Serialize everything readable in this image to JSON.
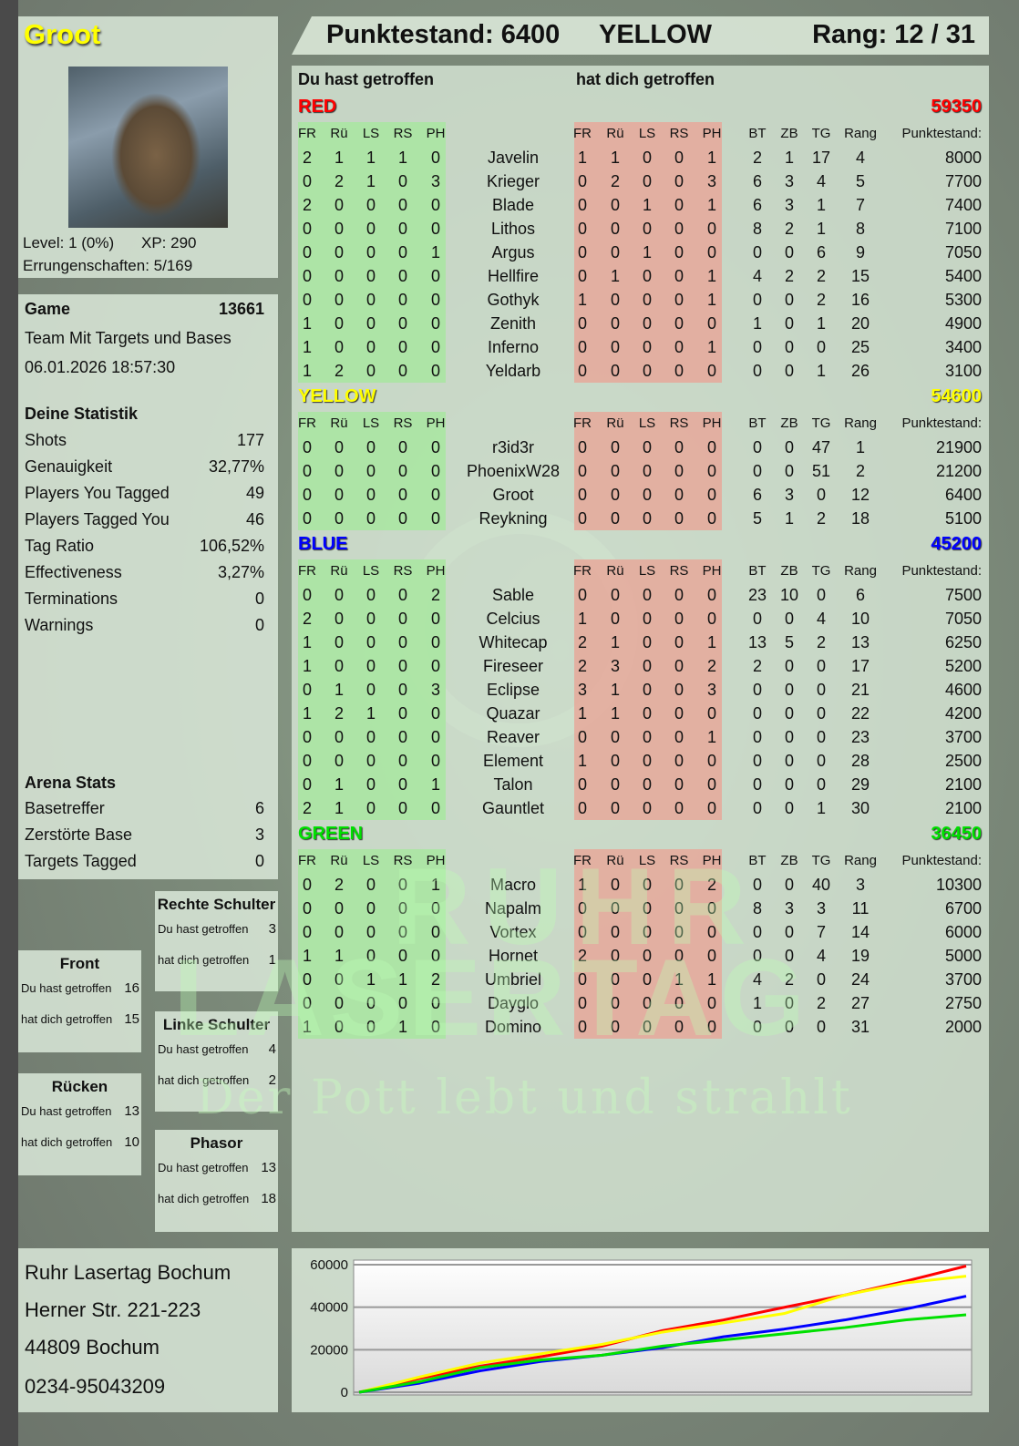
{
  "watermark": {
    "logo_line1": "RUHR",
    "logo_line2": "LASERTAG",
    "slogan": "Der Pott lebt und strahlt"
  },
  "profile": {
    "name": "Groot",
    "level": "Level: 1 (0%)",
    "xp": "XP: 290",
    "achievements": "Errungenschaften: 5/169",
    "avatar_icon": "groot-avatar-image"
  },
  "header": {
    "score": "Punktestand: 6400",
    "team": "YELLOW",
    "rank": "Rang: 12 / 31"
  },
  "game": {
    "label": "Game",
    "id": "13661",
    "mode": "Team Mit Targets und Bases",
    "datetime": "06.01.2026 18:57:30",
    "stats_title": "Deine Statistik",
    "stats": [
      {
        "label": "Shots",
        "value": "177"
      },
      {
        "label": "Genauigkeit",
        "value": "32,77%"
      },
      {
        "label": "Players You Tagged",
        "value": "49"
      },
      {
        "label": "Players Tagged You",
        "value": "46"
      },
      {
        "label": "Tag Ratio",
        "value": "106,52%"
      },
      {
        "label": "Effectiveness",
        "value": "3,27%"
      },
      {
        "label": "Terminations",
        "value": "0"
      },
      {
        "label": "Warnings",
        "value": "0"
      }
    ],
    "arena_title": "Arena Stats",
    "arena": [
      {
        "label": "Basetreffer",
        "value": "6"
      },
      {
        "label": "Zerstörte Base",
        "value": "3"
      },
      {
        "label": "Targets Tagged",
        "value": "0"
      }
    ]
  },
  "zones": [
    {
      "title": "Rechte Schulter",
      "hit_label": "Du hast getroffen",
      "hit": "3",
      "got_label": "hat dich getroffen",
      "got": "1"
    },
    {
      "title": "Front",
      "hit_label": "Du hast getroffen",
      "hit": "16",
      "got_label": "hat dich getroffen",
      "got": "15"
    },
    {
      "title": "Linke Schulter",
      "hit_label": "Du hast getroffen",
      "hit": "4",
      "got_label": "hat dich getroffen",
      "got": "2"
    },
    {
      "title": "Rücken",
      "hit_label": "Du hast getroffen",
      "hit": "13",
      "got_label": "hat dich getroffen",
      "got": "10"
    },
    {
      "title": "Phasor",
      "hit_label": "Du hast getroffen",
      "hit": "13",
      "got_label": "hat dich getroffen",
      "got": "18"
    }
  ],
  "address": {
    "line1": "Ruhr Lasertag Bochum",
    "line2": "Herner Str. 221-223",
    "line3": "44809 Bochum",
    "line4": "0234-95043209"
  },
  "board": {
    "hit_label": "Du hast getroffen",
    "got_label": "hat dich getroffen",
    "zone_headers": [
      "FR",
      "Rü",
      "LS",
      "RS",
      "PH"
    ],
    "stat_headers": [
      "BT",
      "ZB",
      "TG",
      "Rang"
    ],
    "score_header": "Punktestand:",
    "hit_bg": "#a8e6a0",
    "got_bg": "#e6a89a",
    "teams": [
      {
        "name": "RED",
        "color": "#ff0000",
        "score": "59350",
        "players": [
          {
            "name": "Javelin",
            "hit": [
              "2",
              "1",
              "1",
              "1",
              "0"
            ],
            "got": [
              "1",
              "1",
              "0",
              "0",
              "1"
            ],
            "bt": "2",
            "zb": "1",
            "tg": "17",
            "rang": "4",
            "score": "8000"
          },
          {
            "name": "Krieger",
            "hit": [
              "0",
              "2",
              "1",
              "0",
              "3"
            ],
            "got": [
              "0",
              "2",
              "0",
              "0",
              "3"
            ],
            "bt": "6",
            "zb": "3",
            "tg": "4",
            "rang": "5",
            "score": "7700"
          },
          {
            "name": "Blade",
            "hit": [
              "2",
              "0",
              "0",
              "0",
              "0"
            ],
            "got": [
              "0",
              "0",
              "1",
              "0",
              "1"
            ],
            "bt": "6",
            "zb": "3",
            "tg": "1",
            "rang": "7",
            "score": "7400"
          },
          {
            "name": "Lithos",
            "hit": [
              "0",
              "0",
              "0",
              "0",
              "0"
            ],
            "got": [
              "0",
              "0",
              "0",
              "0",
              "0"
            ],
            "bt": "8",
            "zb": "2",
            "tg": "1",
            "rang": "8",
            "score": "7100"
          },
          {
            "name": "Argus",
            "hit": [
              "0",
              "0",
              "0",
              "0",
              "1"
            ],
            "got": [
              "0",
              "0",
              "1",
              "0",
              "0"
            ],
            "bt": "0",
            "zb": "0",
            "tg": "6",
            "rang": "9",
            "score": "7050"
          },
          {
            "name": "Hellfire",
            "hit": [
              "0",
              "0",
              "0",
              "0",
              "0"
            ],
            "got": [
              "0",
              "1",
              "0",
              "0",
              "1"
            ],
            "bt": "4",
            "zb": "2",
            "tg": "2",
            "rang": "15",
            "score": "5400"
          },
          {
            "name": "Gothyk",
            "hit": [
              "0",
              "0",
              "0",
              "0",
              "0"
            ],
            "got": [
              "1",
              "0",
              "0",
              "0",
              "1"
            ],
            "bt": "0",
            "zb": "0",
            "tg": "2",
            "rang": "16",
            "score": "5300"
          },
          {
            "name": "Zenith",
            "hit": [
              "1",
              "0",
              "0",
              "0",
              "0"
            ],
            "got": [
              "0",
              "0",
              "0",
              "0",
              "0"
            ],
            "bt": "1",
            "zb": "0",
            "tg": "1",
            "rang": "20",
            "score": "4900"
          },
          {
            "name": "Inferno",
            "hit": [
              "1",
              "0",
              "0",
              "0",
              "0"
            ],
            "got": [
              "0",
              "0",
              "0",
              "0",
              "1"
            ],
            "bt": "0",
            "zb": "0",
            "tg": "0",
            "rang": "25",
            "score": "3400"
          },
          {
            "name": "Yeldarb",
            "hit": [
              "1",
              "2",
              "0",
              "0",
              "0"
            ],
            "got": [
              "0",
              "0",
              "0",
              "0",
              "0"
            ],
            "bt": "0",
            "zb": "0",
            "tg": "1",
            "rang": "26",
            "score": "3100"
          }
        ]
      },
      {
        "name": "YELLOW",
        "color": "#ffff00",
        "score": "54600",
        "players": [
          {
            "name": "r3id3r",
            "hit": [
              "0",
              "0",
              "0",
              "0",
              "0"
            ],
            "got": [
              "0",
              "0",
              "0",
              "0",
              "0"
            ],
            "bt": "0",
            "zb": "0",
            "tg": "47",
            "rang": "1",
            "score": "21900"
          },
          {
            "name": "PhoenixW28",
            "hit": [
              "0",
              "0",
              "0",
              "0",
              "0"
            ],
            "got": [
              "0",
              "0",
              "0",
              "0",
              "0"
            ],
            "bt": "0",
            "zb": "0",
            "tg": "51",
            "rang": "2",
            "score": "21200"
          },
          {
            "name": "Groot",
            "hit": [
              "0",
              "0",
              "0",
              "0",
              "0"
            ],
            "got": [
              "0",
              "0",
              "0",
              "0",
              "0"
            ],
            "bt": "6",
            "zb": "3",
            "tg": "0",
            "rang": "12",
            "score": "6400"
          },
          {
            "name": "Reykning",
            "hit": [
              "0",
              "0",
              "0",
              "0",
              "0"
            ],
            "got": [
              "0",
              "0",
              "0",
              "0",
              "0"
            ],
            "bt": "5",
            "zb": "1",
            "tg": "2",
            "rang": "18",
            "score": "5100"
          }
        ]
      },
      {
        "name": "BLUE",
        "color": "#0000ff",
        "score": "45200",
        "players": [
          {
            "name": "Sable",
            "hit": [
              "0",
              "0",
              "0",
              "0",
              "2"
            ],
            "got": [
              "0",
              "0",
              "0",
              "0",
              "0"
            ],
            "bt": "23",
            "zb": "10",
            "tg": "0",
            "rang": "6",
            "score": "7500"
          },
          {
            "name": "Celcius",
            "hit": [
              "2",
              "0",
              "0",
              "0",
              "0"
            ],
            "got": [
              "1",
              "0",
              "0",
              "0",
              "0"
            ],
            "bt": "0",
            "zb": "0",
            "tg": "4",
            "rang": "10",
            "score": "7050"
          },
          {
            "name": "Whitecap",
            "hit": [
              "1",
              "0",
              "0",
              "0",
              "0"
            ],
            "got": [
              "2",
              "1",
              "0",
              "0",
              "1"
            ],
            "bt": "13",
            "zb": "5",
            "tg": "2",
            "rang": "13",
            "score": "6250"
          },
          {
            "name": "Fireseer",
            "hit": [
              "1",
              "0",
              "0",
              "0",
              "0"
            ],
            "got": [
              "2",
              "3",
              "0",
              "0",
              "2"
            ],
            "bt": "2",
            "zb": "0",
            "tg": "0",
            "rang": "17",
            "score": "5200"
          },
          {
            "name": "Eclipse",
            "hit": [
              "0",
              "1",
              "0",
              "0",
              "3"
            ],
            "got": [
              "3",
              "1",
              "0",
              "0",
              "3"
            ],
            "bt": "0",
            "zb": "0",
            "tg": "0",
            "rang": "21",
            "score": "4600"
          },
          {
            "name": "Quazar",
            "hit": [
              "1",
              "2",
              "1",
              "0",
              "0"
            ],
            "got": [
              "1",
              "1",
              "0",
              "0",
              "0"
            ],
            "bt": "0",
            "zb": "0",
            "tg": "0",
            "rang": "22",
            "score": "4200"
          },
          {
            "name": "Reaver",
            "hit": [
              "0",
              "0",
              "0",
              "0",
              "0"
            ],
            "got": [
              "0",
              "0",
              "0",
              "0",
              "1"
            ],
            "bt": "0",
            "zb": "0",
            "tg": "0",
            "rang": "23",
            "score": "3700"
          },
          {
            "name": "Element",
            "hit": [
              "0",
              "0",
              "0",
              "0",
              "0"
            ],
            "got": [
              "1",
              "0",
              "0",
              "0",
              "0"
            ],
            "bt": "0",
            "zb": "0",
            "tg": "0",
            "rang": "28",
            "score": "2500"
          },
          {
            "name": "Talon",
            "hit": [
              "0",
              "1",
              "0",
              "0",
              "1"
            ],
            "got": [
              "0",
              "0",
              "0",
              "0",
              "0"
            ],
            "bt": "0",
            "zb": "0",
            "tg": "0",
            "rang": "29",
            "score": "2100"
          },
          {
            "name": "Gauntlet",
            "hit": [
              "2",
              "1",
              "0",
              "0",
              "0"
            ],
            "got": [
              "0",
              "0",
              "0",
              "0",
              "0"
            ],
            "bt": "0",
            "zb": "0",
            "tg": "1",
            "rang": "30",
            "score": "2100"
          }
        ]
      },
      {
        "name": "GREEN",
        "color": "#00e000",
        "score": "36450",
        "players": [
          {
            "name": "Macro",
            "hit": [
              "0",
              "2",
              "0",
              "0",
              "1"
            ],
            "got": [
              "1",
              "0",
              "0",
              "0",
              "2"
            ],
            "bt": "0",
            "zb": "0",
            "tg": "40",
            "rang": "3",
            "score": "10300"
          },
          {
            "name": "Napalm",
            "hit": [
              "0",
              "0",
              "0",
              "0",
              "0"
            ],
            "got": [
              "0",
              "0",
              "0",
              "0",
              "0"
            ],
            "bt": "8",
            "zb": "3",
            "tg": "3",
            "rang": "11",
            "score": "6700"
          },
          {
            "name": "Vortex",
            "hit": [
              "0",
              "0",
              "0",
              "0",
              "0"
            ],
            "got": [
              "0",
              "0",
              "0",
              "0",
              "0"
            ],
            "bt": "0",
            "zb": "0",
            "tg": "7",
            "rang": "14",
            "score": "6000"
          },
          {
            "name": "Hornet",
            "hit": [
              "1",
              "1",
              "0",
              "0",
              "0"
            ],
            "got": [
              "2",
              "0",
              "0",
              "0",
              "0"
            ],
            "bt": "0",
            "zb": "0",
            "tg": "4",
            "rang": "19",
            "score": "5000"
          },
          {
            "name": "Umbriel",
            "hit": [
              "0",
              "0",
              "1",
              "1",
              "2"
            ],
            "got": [
              "0",
              "0",
              "0",
              "1",
              "1"
            ],
            "bt": "4",
            "zb": "2",
            "tg": "0",
            "rang": "24",
            "score": "3700"
          },
          {
            "name": "Dayglo",
            "hit": [
              "0",
              "0",
              "0",
              "0",
              "0"
            ],
            "got": [
              "0",
              "0",
              "0",
              "0",
              "0"
            ],
            "bt": "1",
            "zb": "0",
            "tg": "2",
            "rang": "27",
            "score": "2750"
          },
          {
            "name": "Domino",
            "hit": [
              "1",
              "0",
              "0",
              "1",
              "0"
            ],
            "got": [
              "0",
              "0",
              "0",
              "0",
              "0"
            ],
            "bt": "0",
            "zb": "0",
            "tg": "0",
            "rang": "31",
            "score": "2000"
          }
        ]
      }
    ]
  },
  "chart_data": {
    "type": "line",
    "ylim": [
      0,
      60000
    ],
    "yticks": [
      "0",
      "20000",
      "40000",
      "60000"
    ],
    "grid": true,
    "x": [
      0,
      0.1,
      0.2,
      0.3,
      0.4,
      0.5,
      0.6,
      0.7,
      0.8,
      0.9,
      1
    ],
    "series": [
      {
        "color": "#ff0000",
        "values": [
          0,
          6500,
          12300,
          16700,
          21700,
          29000,
          34000,
          39900,
          45700,
          52200,
          59350
        ]
      },
      {
        "color": "#ffff00",
        "values": [
          0,
          7200,
          13800,
          18100,
          22500,
          28300,
          32600,
          37000,
          45700,
          51400,
          54600
        ]
      },
      {
        "color": "#0000ff",
        "values": [
          0,
          4300,
          10100,
          14500,
          17400,
          21000,
          26100,
          29700,
          34000,
          39100,
          45200
        ]
      },
      {
        "color": "#00e000",
        "values": [
          0,
          5000,
          11600,
          15200,
          17400,
          21700,
          24600,
          27500,
          30400,
          34000,
          36450
        ]
      }
    ]
  }
}
